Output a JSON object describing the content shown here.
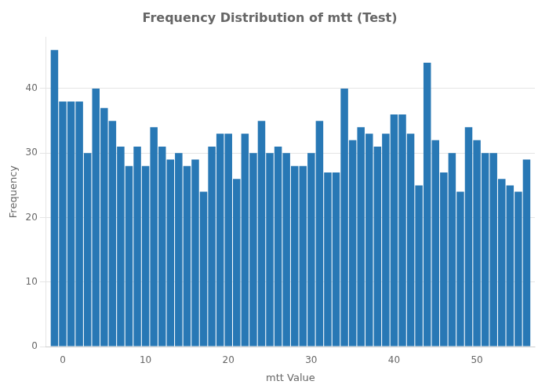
{
  "chart_data": {
    "type": "bar",
    "title": "Frequency Distribution of mtt (Test)",
    "xlabel": "mtt Value",
    "ylabel": "Frequency",
    "x": [
      -1,
      0,
      1,
      2,
      3,
      4,
      5,
      6,
      7,
      8,
      9,
      10,
      11,
      12,
      13,
      14,
      15,
      16,
      17,
      18,
      19,
      20,
      21,
      22,
      23,
      24,
      25,
      26,
      27,
      28,
      29,
      30,
      31,
      32,
      33,
      34,
      35,
      36,
      37,
      38,
      39,
      40,
      41,
      42,
      43,
      44,
      45,
      46,
      47,
      48,
      49,
      50,
      51,
      52,
      53,
      54,
      55,
      56
    ],
    "values": [
      46,
      38,
      38,
      38,
      30,
      40,
      37,
      35,
      31,
      28,
      31,
      28,
      34,
      31,
      29,
      30,
      28,
      29,
      24,
      31,
      33,
      33,
      26,
      33,
      30,
      35,
      30,
      31,
      30,
      28,
      28,
      30,
      35,
      27,
      27,
      40,
      32,
      34,
      33,
      31,
      33,
      36,
      36,
      33,
      25,
      44,
      32,
      27,
      30,
      24,
      34,
      32,
      30,
      30,
      26,
      25,
      24,
      29
    ],
    "color": "#2878b5",
    "xlim": [
      -2,
      57
    ],
    "xticks": [
      0,
      10,
      20,
      30,
      40,
      50
    ],
    "ylim": [
      0,
      48
    ],
    "yticks": [
      0,
      10,
      20,
      30,
      40
    ],
    "grid": "y"
  }
}
